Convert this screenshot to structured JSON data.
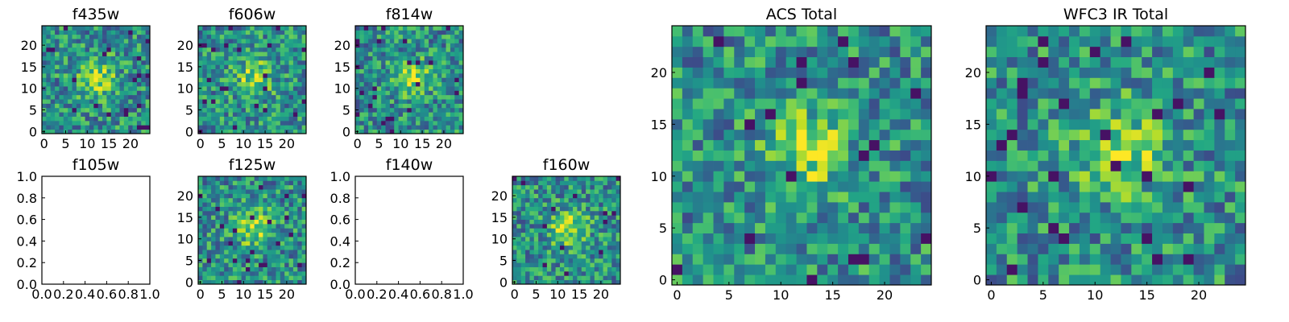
{
  "figure": {
    "colormap": "viridis",
    "colors": {
      "low": "#440154",
      "mid": "#21918c",
      "high": "#fde725",
      "frame": "#000000"
    }
  },
  "chart_data": [
    {
      "type": "heatmap",
      "title": "f435w",
      "grid_size": 25,
      "xticks": [
        "0",
        "5",
        "10",
        "15",
        "20"
      ],
      "yticks": [
        "0",
        "5",
        "10",
        "15",
        "20"
      ],
      "has_image": true
    },
    {
      "type": "heatmap",
      "title": "f606w",
      "grid_size": 25,
      "xticks": [
        "0",
        "5",
        "10",
        "15",
        "20"
      ],
      "yticks": [
        "0",
        "5",
        "10",
        "15",
        "20"
      ],
      "has_image": true
    },
    {
      "type": "heatmap",
      "title": "f814w",
      "grid_size": 25,
      "xticks": [
        "0",
        "5",
        "10",
        "15",
        "20"
      ],
      "yticks": [
        "0",
        "5",
        "10",
        "15",
        "20"
      ],
      "has_image": true
    },
    {
      "type": "heatmap",
      "title": "f105w",
      "xticks": [
        "0.0",
        "0.2",
        "0.4",
        "0.6",
        "0.8",
        "1.0"
      ],
      "yticks": [
        "0.0",
        "0.2",
        "0.4",
        "0.6",
        "0.8",
        "1.0"
      ],
      "xlim": [
        0,
        1
      ],
      "ylim": [
        0,
        1
      ],
      "has_image": false
    },
    {
      "type": "heatmap",
      "title": "f125w",
      "grid_size": 25,
      "xticks": [
        "0",
        "5",
        "10",
        "15",
        "20"
      ],
      "yticks": [
        "0",
        "5",
        "10",
        "15",
        "20"
      ],
      "has_image": true
    },
    {
      "type": "heatmap",
      "title": "f140w",
      "xticks": [
        "0.0",
        "0.2",
        "0.4",
        "0.6",
        "0.8",
        "1.0"
      ],
      "yticks": [
        "0.0",
        "0.2",
        "0.4",
        "0.6",
        "0.8",
        "1.0"
      ],
      "xlim": [
        0,
        1
      ],
      "ylim": [
        0,
        1
      ],
      "has_image": false
    },
    {
      "type": "heatmap",
      "title": "f160w",
      "grid_size": 25,
      "xticks": [
        "0",
        "5",
        "10",
        "15",
        "20"
      ],
      "yticks": [
        "0",
        "5",
        "10",
        "15",
        "20"
      ],
      "has_image": true
    },
    {
      "type": "heatmap",
      "title": "ACS Total",
      "grid_size": 25,
      "xticks": [
        "0",
        "5",
        "10",
        "15",
        "20"
      ],
      "yticks": [
        "0",
        "5",
        "10",
        "15",
        "20"
      ],
      "has_image": true
    },
    {
      "type": "heatmap",
      "title": "WFC3 IR Total",
      "grid_size": 25,
      "xticks": [
        "0",
        "5",
        "10",
        "15",
        "20"
      ],
      "yticks": [
        "0",
        "5",
        "10",
        "15",
        "20"
      ],
      "has_image": true
    }
  ]
}
